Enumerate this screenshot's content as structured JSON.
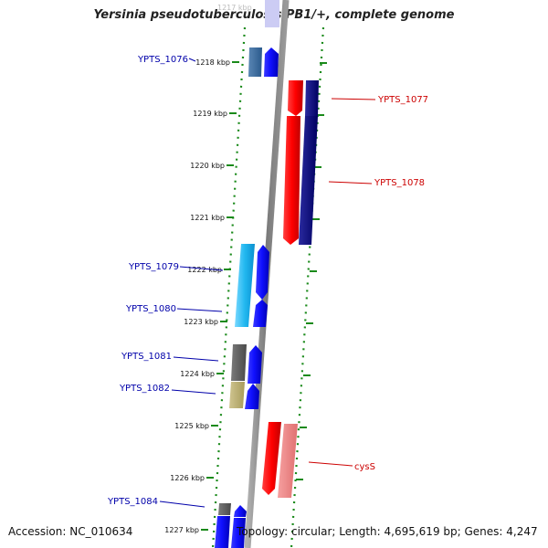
{
  "title": "Yersinia pseudotuberculosis PB1/+, complete genome",
  "accession_text": "Accession: NC_010634",
  "summary_text": "Topology: circular; Length: 4,695,619 bp; Genes: 4,247",
  "colors": {
    "backbone": "#8a8a8a",
    "guide": "#1a8a1a",
    "forward_label": "#0000aa",
    "reverse_label": "#cc0000"
  },
  "ticks": [
    "1217 kbp",
    "1218 kbp",
    "1219 kbp",
    "1220 kbp",
    "1221 kbp",
    "1222 kbp",
    "1223 kbp",
    "1224 kbp",
    "1225 kbp",
    "1226 kbp",
    "1227 kbp"
  ],
  "gene_labels": {
    "ypts_1076": "YPTS_1076",
    "ypts_1077": "YPTS_1077",
    "ypts_1078": "YPTS_1078",
    "ypts_1079": "YPTS_1079",
    "ypts_1080": "YPTS_1080",
    "ypts_1081": "YPTS_1081",
    "ypts_1082": "YPTS_1082",
    "cyss": "cysS",
    "ypts_1084": "YPTS_1084"
  }
}
